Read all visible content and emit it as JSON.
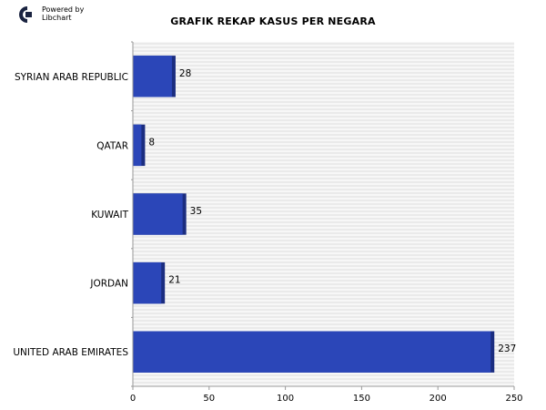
{
  "branding": {
    "line1": "Powered by",
    "line2": "Libchart"
  },
  "chart_data": {
    "type": "bar",
    "orientation": "horizontal",
    "title": "GRAFIK REKAP KASUS PER NEGARA",
    "categories": [
      "SYRIAN ARAB REPUBLIC",
      "QATAR",
      "KUWAIT",
      "JORDAN",
      "UNITED ARAB EMIRATES"
    ],
    "values": [
      28,
      8,
      35,
      21,
      237
    ],
    "xlim": [
      0,
      250
    ],
    "xticks": [
      0,
      50,
      100,
      150,
      200,
      250
    ],
    "grid": true,
    "legend": "none",
    "colors": {
      "bar": "#2b46b8",
      "bar_shadow": "#1b2d80",
      "grid": "#dddddd",
      "axis": "#999999"
    }
  }
}
